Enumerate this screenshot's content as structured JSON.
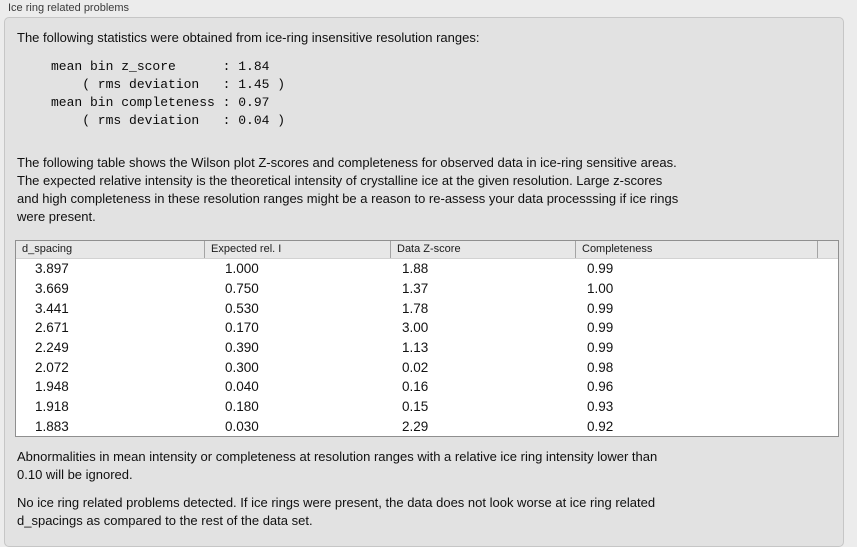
{
  "panel": {
    "title": "Ice ring related problems"
  },
  "intro": {
    "text": "The following statistics were obtained from ice-ring insensitive resolution ranges:"
  },
  "stats": {
    "block": "mean bin z_score      : 1.84\n    ( rms deviation   : 1.45 )\nmean bin completeness : 0.97\n    ( rms deviation   : 0.04 )",
    "mean_bin_z_score": "1.84",
    "z_score_rms_deviation": "1.45",
    "mean_bin_completeness": "0.97",
    "completeness_rms_deviation": "0.04"
  },
  "table_intro": {
    "text": "The following table shows the Wilson plot Z-scores and completeness for observed data in ice-ring sensitive areas.\nThe expected relative intensity is the theoretical intensity of crystalline ice at the given resolution. Large z-scores\nand high completeness in these resolution ranges might be a reason to re-assess your data processsing if ice rings\nwere present."
  },
  "table": {
    "columns": [
      "d_spacing",
      "Expected rel. I",
      "Data Z-score",
      "Completeness"
    ],
    "rows": [
      [
        "3.897",
        "1.000",
        "1.88",
        "0.99"
      ],
      [
        "3.669",
        "0.750",
        "1.37",
        "1.00"
      ],
      [
        "3.441",
        "0.530",
        "1.78",
        "0.99"
      ],
      [
        "2.671",
        "0.170",
        "3.00",
        "0.99"
      ],
      [
        "2.249",
        "0.390",
        "1.13",
        "0.99"
      ],
      [
        "2.072",
        "0.300",
        "0.02",
        "0.98"
      ],
      [
        "1.948",
        "0.040",
        "0.16",
        "0.96"
      ],
      [
        "1.918",
        "0.180",
        "0.15",
        "0.93"
      ],
      [
        "1.883",
        "0.030",
        "2.29",
        "0.92"
      ]
    ]
  },
  "notes": {
    "ignore_note": "Abnormalities in mean intensity or completeness at resolution ranges with a relative ice ring intensity lower than\n0.10 will be ignored.",
    "verdict": "No ice ring related problems detected. If ice rings were present, the data does not look worse at ice ring related\nd_spacings as compared to the rest of the data set."
  },
  "colors": {
    "page_background": "#ececec",
    "groupbox_background": "#e2e2e2",
    "groupbox_border": "#c6c6c6",
    "table_border": "#8f8f8f",
    "table_header_background": "#e7e7e7",
    "text": "#101010"
  }
}
